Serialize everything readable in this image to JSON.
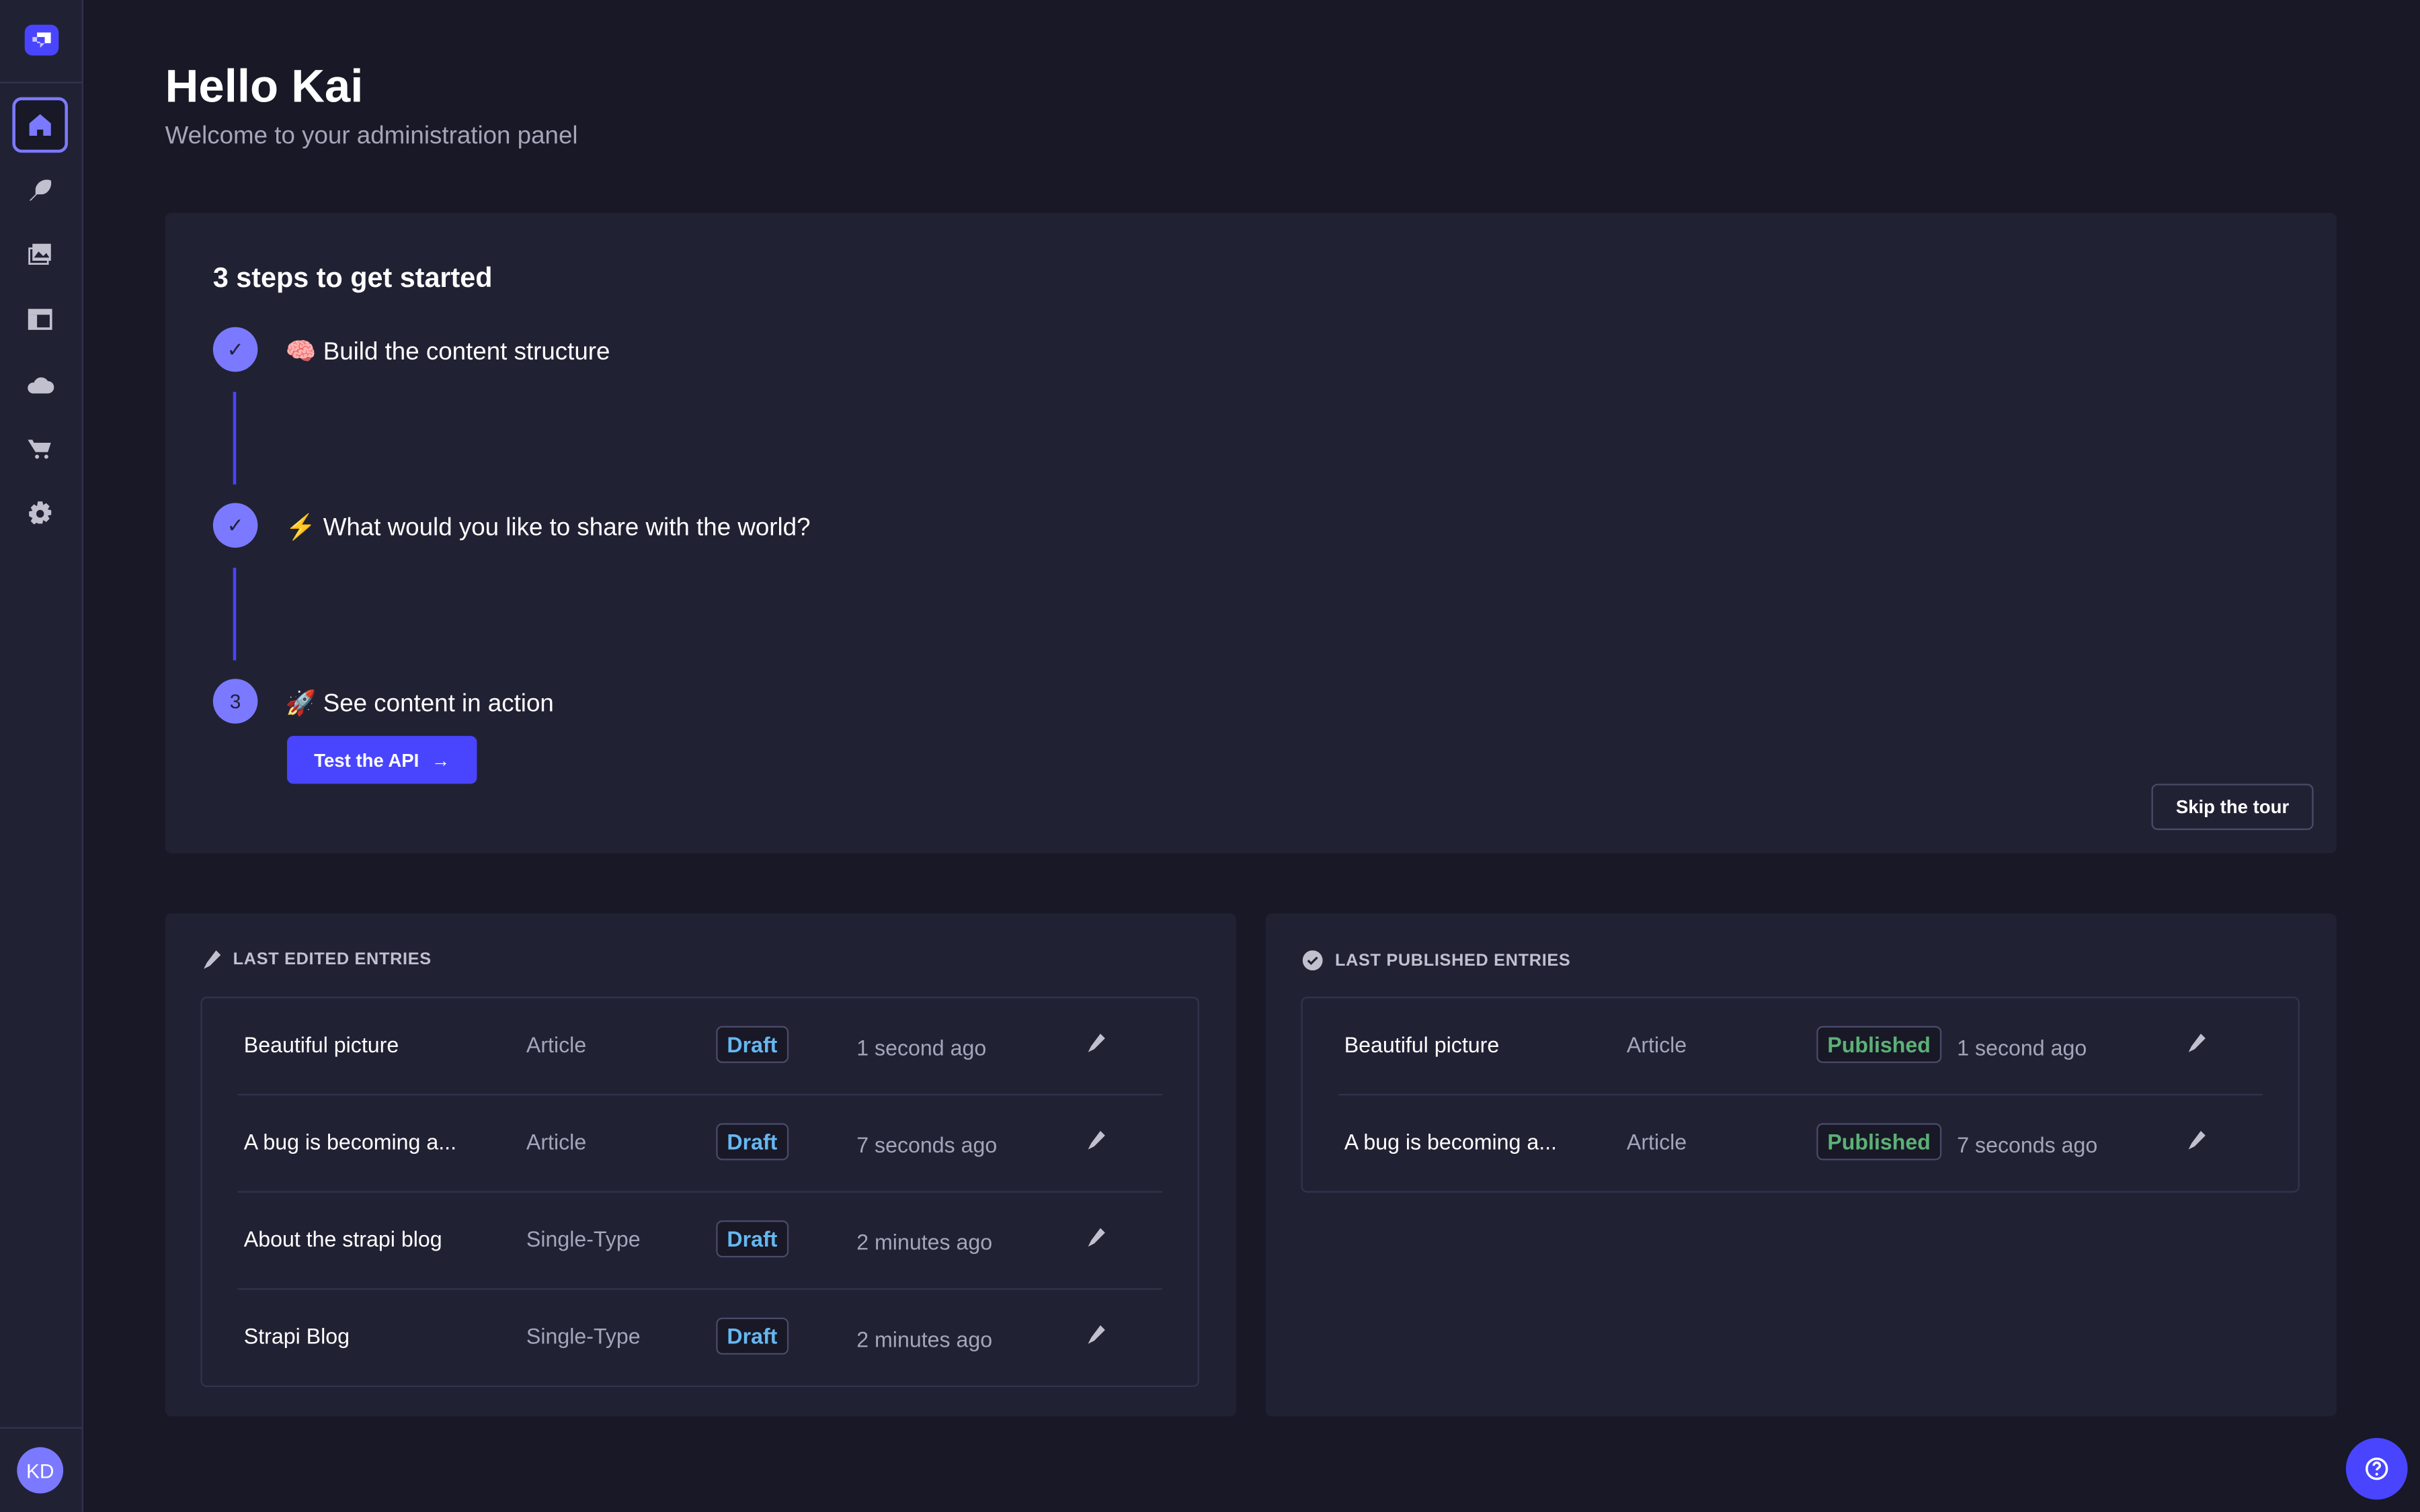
{
  "colors": {
    "primary": "#4945ff",
    "step": "#7b79ff",
    "draft": "#66b7f1",
    "published": "#5cb176",
    "bg": "#181826",
    "panel": "#212134"
  },
  "sidebar": {
    "items": [
      {
        "icon": "home-icon",
        "active": true
      },
      {
        "icon": "feather-icon"
      },
      {
        "icon": "media-library-icon"
      },
      {
        "icon": "layout-icon"
      },
      {
        "icon": "cloud-icon"
      },
      {
        "icon": "cart-icon"
      },
      {
        "icon": "gear-icon"
      }
    ],
    "avatar": "KD"
  },
  "header": {
    "title": "Hello Kai",
    "subtitle": "Welcome to your administration panel"
  },
  "steps": {
    "title": "3 steps to get started",
    "items": [
      {
        "emoji": "🧠",
        "label": "Build the content structure",
        "done": true
      },
      {
        "emoji": "⚡",
        "label": "What would you like to share with the world?",
        "done": true
      },
      {
        "emoji": "🚀",
        "label": "See content in action",
        "done": false,
        "number": "3"
      }
    ],
    "test_api": "Test the API",
    "skip": "Skip the tour"
  },
  "last_edited": {
    "title": "LAST EDITED ENTRIES",
    "rows": [
      {
        "title": "Beautiful picture",
        "type": "Article",
        "status": "Draft",
        "time": "1 second ago"
      },
      {
        "title": "A bug is becoming a...",
        "type": "Article",
        "status": "Draft",
        "time": "7 seconds ago"
      },
      {
        "title": "About the strapi blog",
        "type": "Single-Type",
        "status": "Draft",
        "time": "2 minutes ago"
      },
      {
        "title": "Strapi Blog",
        "type": "Single-Type",
        "status": "Draft",
        "time": "2 minutes ago"
      }
    ]
  },
  "last_published": {
    "title": "LAST PUBLISHED ENTRIES",
    "rows": [
      {
        "title": "Beautiful picture",
        "type": "Article",
        "status": "Published",
        "time": "1 second ago"
      },
      {
        "title": "A bug is becoming a...",
        "type": "Article",
        "status": "Published",
        "time": "7 seconds ago"
      }
    ]
  }
}
